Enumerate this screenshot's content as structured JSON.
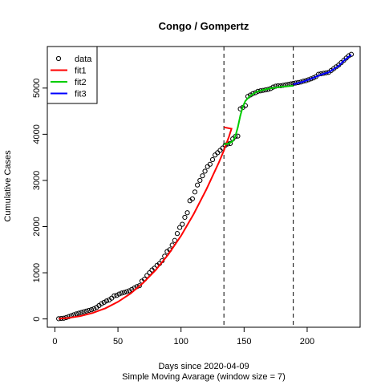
{
  "chart_data": {
    "type": "scatter",
    "title": "Congo / Gompertz",
    "xlabel": "Days since 2020-04-09",
    "xlabel2": "Simple Moving Avarage (window size = 7)",
    "ylabel": "Cumulative Cases",
    "xlim": [
      -6,
      242
    ],
    "ylim": [
      -180,
      5900
    ],
    "x_ticks": [
      "0",
      "50",
      "100",
      "150",
      "200"
    ],
    "x_tick_values": [
      0,
      50,
      100,
      150,
      200
    ],
    "y_ticks": [
      "0",
      "1000",
      "2000",
      "3000",
      "4000",
      "5000"
    ],
    "y_tick_values": [
      0,
      1000,
      2000,
      3000,
      4000,
      5000
    ],
    "vlines": [
      134,
      189
    ],
    "legend_position": "top-left",
    "legend": [
      {
        "label": "data",
        "type": "point",
        "color": "#000000"
      },
      {
        "label": "fit1",
        "type": "line",
        "color": "#ff0000"
      },
      {
        "label": "fit2",
        "type": "line",
        "color": "#00cd00"
      },
      {
        "label": "fit3",
        "type": "line",
        "color": "#0000ff"
      }
    ],
    "series": [
      {
        "name": "data",
        "type": "points",
        "color": "#000000",
        "points": [
          [
            3,
            5
          ],
          [
            5,
            10
          ],
          [
            7,
            15
          ],
          [
            9,
            30
          ],
          [
            11,
            50
          ],
          [
            13,
            70
          ],
          [
            15,
            90
          ],
          [
            17,
            110
          ],
          [
            19,
            125
          ],
          [
            21,
            140
          ],
          [
            23,
            155
          ],
          [
            25,
            170
          ],
          [
            27,
            185
          ],
          [
            29,
            200
          ],
          [
            31,
            220
          ],
          [
            33,
            250
          ],
          [
            35,
            290
          ],
          [
            37,
            330
          ],
          [
            39,
            360
          ],
          [
            41,
            390
          ],
          [
            43,
            410
          ],
          [
            45,
            450
          ],
          [
            47,
            500
          ],
          [
            49,
            510
          ],
          [
            51,
            540
          ],
          [
            53,
            560
          ],
          [
            55,
            575
          ],
          [
            57,
            590
          ],
          [
            59,
            610
          ],
          [
            61,
            640
          ],
          [
            63,
            670
          ],
          [
            65,
            700
          ],
          [
            67,
            720
          ],
          [
            69,
            820
          ],
          [
            71,
            860
          ],
          [
            73,
            940
          ],
          [
            75,
            1000
          ],
          [
            77,
            1060
          ],
          [
            79,
            1100
          ],
          [
            81,
            1160
          ],
          [
            83,
            1200
          ],
          [
            85,
            1260
          ],
          [
            87,
            1360
          ],
          [
            89,
            1460
          ],
          [
            91,
            1500
          ],
          [
            93,
            1600
          ],
          [
            95,
            1700
          ],
          [
            97,
            1850
          ],
          [
            99,
            1980
          ],
          [
            101,
            2050
          ],
          [
            103,
            2200
          ],
          [
            105,
            2300
          ],
          [
            107,
            2560
          ],
          [
            109,
            2600
          ],
          [
            111,
            2750
          ],
          [
            113,
            2900
          ],
          [
            115,
            3000
          ],
          [
            117,
            3100
          ],
          [
            119,
            3200
          ],
          [
            121,
            3300
          ],
          [
            123,
            3350
          ],
          [
            125,
            3450
          ],
          [
            127,
            3550
          ],
          [
            129,
            3600
          ],
          [
            131,
            3650
          ],
          [
            133,
            3700
          ],
          [
            135,
            3760
          ],
          [
            137,
            3790
          ],
          [
            139,
            3800
          ],
          [
            141,
            3900
          ],
          [
            143,
            3950
          ],
          [
            145,
            3960
          ],
          [
            147,
            4550
          ],
          [
            149,
            4580
          ],
          [
            151,
            4620
          ],
          [
            153,
            4820
          ],
          [
            155,
            4850
          ],
          [
            157,
            4880
          ],
          [
            159,
            4900
          ],
          [
            161,
            4930
          ],
          [
            163,
            4940
          ],
          [
            165,
            4950
          ],
          [
            167,
            4960
          ],
          [
            169,
            4970
          ],
          [
            171,
            4990
          ],
          [
            173,
            5020
          ],
          [
            175,
            5040
          ],
          [
            177,
            5050
          ],
          [
            179,
            5050
          ],
          [
            181,
            5060
          ],
          [
            183,
            5070
          ],
          [
            185,
            5080
          ],
          [
            187,
            5090
          ],
          [
            189,
            5100
          ],
          [
            191,
            5110
          ],
          [
            193,
            5120
          ],
          [
            195,
            5130
          ],
          [
            197,
            5150
          ],
          [
            199,
            5160
          ],
          [
            201,
            5180
          ],
          [
            203,
            5200
          ],
          [
            205,
            5220
          ],
          [
            207,
            5250
          ],
          [
            209,
            5300
          ],
          [
            211,
            5310
          ],
          [
            213,
            5320
          ],
          [
            215,
            5330
          ],
          [
            217,
            5340
          ],
          [
            219,
            5380
          ],
          [
            221,
            5420
          ],
          [
            223,
            5460
          ],
          [
            225,
            5500
          ],
          [
            227,
            5550
          ],
          [
            229,
            5600
          ],
          [
            231,
            5650
          ],
          [
            233,
            5700
          ],
          [
            235,
            5730
          ]
        ]
      },
      {
        "name": "fit1",
        "type": "line",
        "color": "#ff0000",
        "points": [
          [
            3,
            5
          ],
          [
            10,
            20
          ],
          [
            20,
            60
          ],
          [
            30,
            130
          ],
          [
            40,
            230
          ],
          [
            50,
            370
          ],
          [
            60,
            550
          ],
          [
            70,
            780
          ],
          [
            80,
            1060
          ],
          [
            90,
            1400
          ],
          [
            100,
            1800
          ],
          [
            110,
            2270
          ],
          [
            120,
            2800
          ],
          [
            130,
            3390
          ],
          [
            134,
            3650
          ],
          [
            136,
            3800
          ],
          [
            138,
            3950
          ],
          [
            140,
            4120
          ],
          [
            134,
            4150
          ]
        ]
      },
      {
        "name": "fit2",
        "type": "line",
        "color": "#00cd00",
        "points": [
          [
            134,
            3780
          ],
          [
            138,
            3800
          ],
          [
            141,
            3850
          ],
          [
            143,
            3950
          ],
          [
            145,
            4150
          ],
          [
            147,
            4400
          ],
          [
            149,
            4600
          ],
          [
            151,
            4720
          ],
          [
            154,
            4810
          ],
          [
            157,
            4870
          ],
          [
            160,
            4920
          ],
          [
            165,
            4960
          ],
          [
            170,
            4990
          ],
          [
            175,
            5010
          ],
          [
            180,
            5030
          ],
          [
            185,
            5040
          ],
          [
            189,
            5050
          ]
        ]
      },
      {
        "name": "fit3",
        "type": "line",
        "color": "#0000ff",
        "points": [
          [
            189,
            5080
          ],
          [
            193,
            5110
          ],
          [
            197,
            5140
          ],
          [
            201,
            5180
          ],
          [
            205,
            5220
          ],
          [
            209,
            5270
          ],
          [
            213,
            5310
          ],
          [
            217,
            5340
          ],
          [
            221,
            5410
          ],
          [
            225,
            5480
          ],
          [
            229,
            5590
          ],
          [
            233,
            5680
          ],
          [
            235,
            5720
          ]
        ]
      }
    ]
  }
}
